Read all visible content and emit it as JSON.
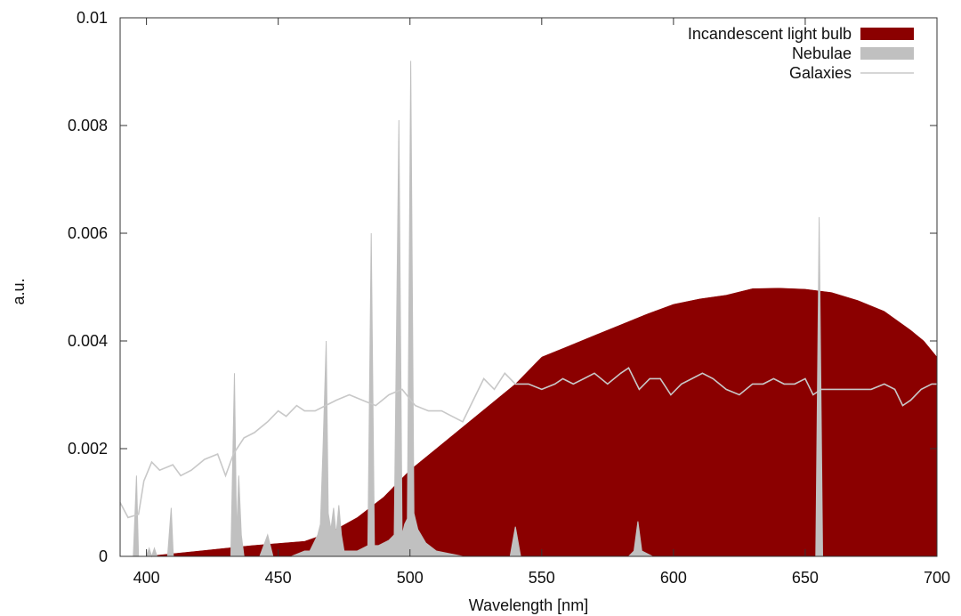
{
  "chart_data": {
    "type": "area",
    "xlabel": "Wavelength [nm]",
    "ylabel": "a.u.",
    "xlim": [
      390,
      700
    ],
    "ylim": [
      0,
      0.01
    ],
    "x_ticks": [
      "400",
      "450",
      "500",
      "550",
      "600",
      "650",
      "700"
    ],
    "y_ticks": [
      "0",
      "0.002",
      "0.004",
      "0.006",
      "0.008",
      "0.01"
    ],
    "grid": false,
    "legend_position": "top-right",
    "series": [
      {
        "name": "Incandescent light bulb",
        "style": "filled-area",
        "color": "#8b0000",
        "x": [
          390,
          400,
          410,
          420,
          430,
          440,
          450,
          460,
          470,
          480,
          490,
          500,
          510,
          520,
          530,
          540,
          550,
          560,
          570,
          580,
          590,
          600,
          610,
          620,
          630,
          640,
          650,
          660,
          670,
          680,
          690,
          695,
          700
        ],
        "y": [
          0,
          0,
          5e-05,
          0.0001,
          0.00015,
          0.0002,
          0.00024,
          0.00028,
          0.00045,
          0.00072,
          0.0011,
          0.0016,
          0.002,
          0.0024,
          0.0028,
          0.0032,
          0.0037,
          0.0039,
          0.0041,
          0.0043,
          0.0045,
          0.00468,
          0.00478,
          0.00485,
          0.00497,
          0.00498,
          0.00496,
          0.0049,
          0.00475,
          0.00455,
          0.0042,
          0.004,
          0.0037
        ]
      },
      {
        "name": "Nebulae",
        "style": "filled-area",
        "color": "#c0c0c0",
        "x": [
          390,
          395,
          396.2,
          397,
          398,
          400,
          401,
          402,
          403,
          404,
          408,
          409.4,
          410.2,
          411,
          420,
          430,
          432,
          433.4,
          434.2,
          435,
          436,
          437,
          443,
          446,
          448,
          455,
          460,
          462,
          465,
          466,
          467,
          468.2,
          469,
          470,
          471,
          472,
          473,
          474,
          475,
          480,
          484,
          485.3,
          486.5,
          488,
          492,
          494,
          495.8,
          497,
          498,
          499,
          500.3,
          501.5,
          503,
          506,
          510,
          520,
          535,
          538,
          540,
          542,
          545,
          570,
          583,
          585,
          586.5,
          588,
          592,
          600,
          650,
          654,
          655.3,
          656.6,
          658,
          700
        ],
        "y": [
          0,
          0,
          0.0015,
          0,
          0,
          0,
          0.00015,
          0,
          0.00015,
          0,
          0,
          0.0009,
          0,
          0,
          0,
          0,
          0,
          0.0034,
          0.0004,
          0.0015,
          0.0004,
          0,
          0,
          0.0004,
          0,
          0,
          0.0001,
          0.0001,
          0.0004,
          0.0006,
          0.002,
          0.004,
          0.0008,
          0.0005,
          0.0009,
          0.0004,
          0.00095,
          0.0004,
          0.0001,
          0.0001,
          0.0002,
          0.006,
          0.0002,
          0.0002,
          0.0003,
          0.0004,
          0.0081,
          0.0004,
          0.0006,
          0.0007,
          0.0092,
          0.0008,
          0.0005,
          0.00025,
          0.0001,
          0,
          0,
          0,
          0.00055,
          0,
          0,
          0,
          0,
          0.0001,
          0.00065,
          0.0001,
          0,
          0,
          0,
          0,
          0.0063,
          0,
          0,
          0
        ]
      },
      {
        "name": "Galaxies",
        "style": "line",
        "color": "#c8c8c8",
        "x": [
          390,
          393,
          397,
          399,
          402,
          405,
          410,
          413,
          417,
          422,
          427,
          430,
          433,
          437,
          441,
          446,
          450,
          453,
          457,
          460,
          464,
          468,
          472,
          477,
          482,
          487,
          492,
          497,
          502,
          507,
          512,
          516,
          520,
          524,
          528,
          532,
          536,
          540,
          545,
          550,
          555,
          558,
          562,
          566,
          570,
          575,
          580,
          583,
          587,
          591,
          595,
          599,
          603,
          607,
          611,
          615,
          620,
          625,
          630,
          634,
          638,
          642,
          646,
          650,
          653,
          656,
          660,
          665,
          670,
          675,
          680,
          684,
          687,
          690,
          694,
          698,
          700
        ],
        "y": [
          0.001,
          0.00072,
          0.00078,
          0.0014,
          0.00175,
          0.0016,
          0.0017,
          0.0015,
          0.0016,
          0.0018,
          0.0019,
          0.0015,
          0.0019,
          0.0022,
          0.0023,
          0.0025,
          0.0027,
          0.0026,
          0.0028,
          0.0027,
          0.0027,
          0.0028,
          0.0029,
          0.003,
          0.0029,
          0.0028,
          0.003,
          0.0031,
          0.0028,
          0.0027,
          0.0027,
          0.0026,
          0.0025,
          0.0029,
          0.0033,
          0.0031,
          0.0034,
          0.0032,
          0.0032,
          0.0031,
          0.0032,
          0.0033,
          0.0032,
          0.0033,
          0.0034,
          0.0032,
          0.0034,
          0.0035,
          0.0031,
          0.0033,
          0.0033,
          0.003,
          0.0032,
          0.0033,
          0.0034,
          0.0033,
          0.0031,
          0.003,
          0.0032,
          0.0032,
          0.0033,
          0.0032,
          0.0032,
          0.0033,
          0.003,
          0.0031,
          0.0031,
          0.0031,
          0.0031,
          0.0031,
          0.0032,
          0.0031,
          0.0028,
          0.0029,
          0.0031,
          0.0032,
          0.0032
        ]
      }
    ]
  }
}
